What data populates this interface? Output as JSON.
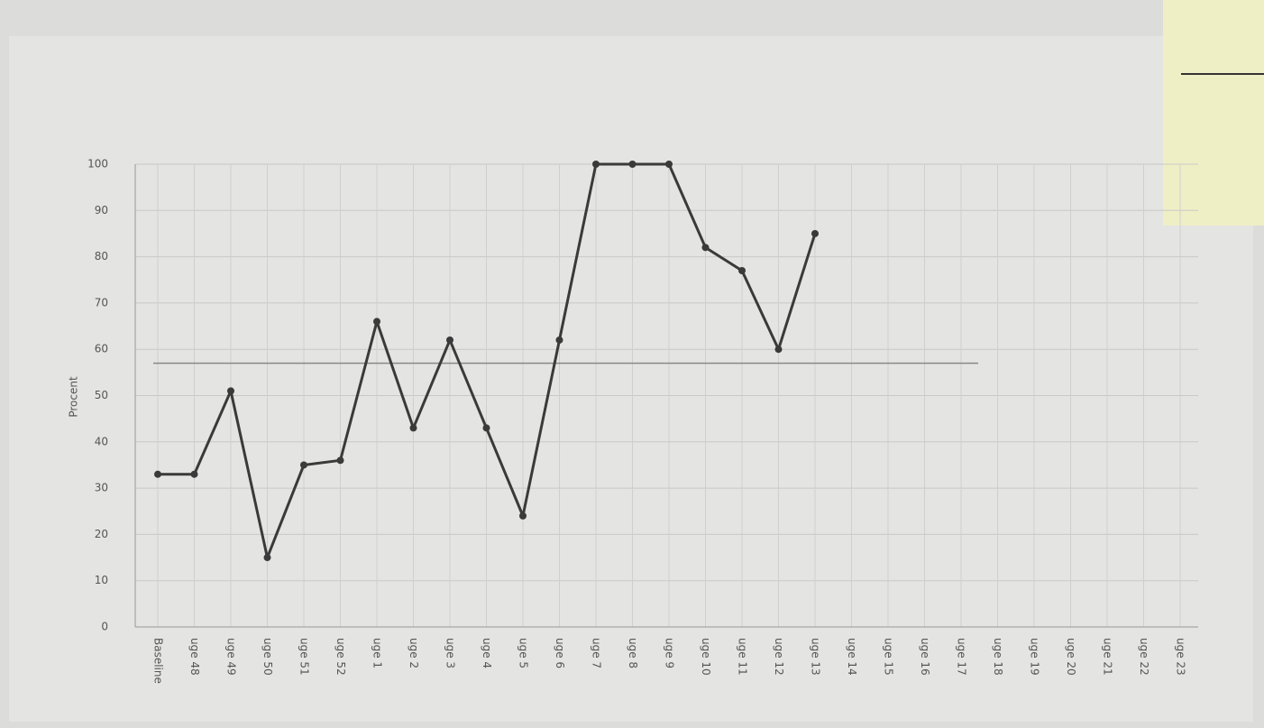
{
  "chart_data": {
    "type": "line",
    "y_label": "Procent",
    "categories": [
      "Baseline",
      "uge 48",
      "uge 49",
      "uge 50",
      "uge 51",
      "uge 52",
      "uge 1",
      "uge 2",
      "uge 3",
      "uge 4",
      "uge 5",
      "uge 6",
      "uge 7",
      "uge 8",
      "uge 9",
      "uge 10",
      "uge 11",
      "uge 12",
      "uge 13",
      "uge 14",
      "uge 15",
      "uge 16",
      "uge 17",
      "uge 18",
      "uge 19",
      "uge 20",
      "uge 21",
      "uge 22",
      "uge 23"
    ],
    "series": [
      {
        "color": "#3a3a3a",
        "values": [
          33,
          33,
          51,
          15,
          35,
          36,
          66,
          43,
          62,
          43,
          24,
          62,
          100,
          100,
          100,
          82,
          77,
          60,
          85,
          null,
          null,
          null,
          null,
          null,
          null,
          null,
          null,
          null,
          null
        ]
      }
    ],
    "reference_line": 57,
    "ylim": [
      0,
      100
    ],
    "yticks": [
      0,
      10,
      20,
      30,
      40,
      50,
      60,
      70,
      80,
      90,
      100
    ],
    "grid": true
  }
}
